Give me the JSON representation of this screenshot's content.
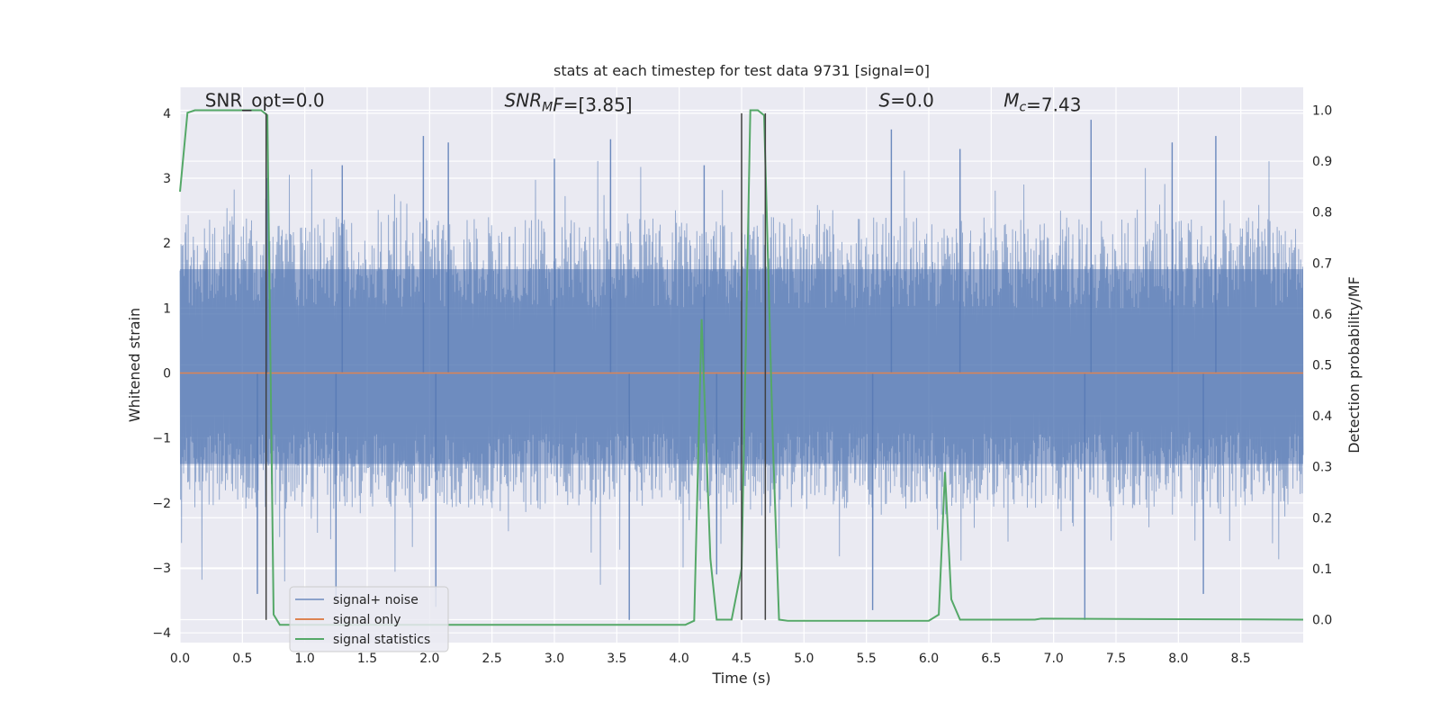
{
  "chart_data": {
    "type": "line",
    "title": "stats at each timestep for test data 9731 [signal=0]",
    "xlabel": "Time (s)",
    "ylabel": "Whitened strain",
    "y2label": "Detection probability/MF",
    "xlim": [
      0.0,
      9.0
    ],
    "ylim": [
      -4.15,
      4.4
    ],
    "y2lim": [
      -0.045,
      1.045
    ],
    "xticks": [
      0.0,
      0.5,
      1.0,
      1.5,
      2.0,
      2.5,
      3.0,
      3.5,
      4.0,
      4.5,
      5.0,
      5.5,
      6.0,
      6.5,
      7.0,
      7.5,
      8.0,
      8.5
    ],
    "xtick_labels": [
      "0.0",
      "0.5",
      "1.0",
      "1.5",
      "2.0",
      "2.5",
      "3.0",
      "3.5",
      "4.0",
      "4.5",
      "5.0",
      "5.5",
      "6.0",
      "6.5",
      "7.0",
      "7.5",
      "8.0",
      "8.5"
    ],
    "yticks": [
      4,
      3,
      2,
      1,
      0,
      -1,
      -2,
      -3,
      -4
    ],
    "ytick_labels": [
      "4",
      "3",
      "2",
      "1",
      "0",
      "−1",
      "−2",
      "−3",
      "−4"
    ],
    "y2ticks": [
      1.0,
      0.9,
      0.8,
      0.7,
      0.6,
      0.5,
      0.4,
      0.3,
      0.2,
      0.1,
      0.0
    ],
    "y2tick_labels": [
      "1.0",
      "0.9",
      "0.8",
      "0.7",
      "0.6",
      "0.5",
      "0.4",
      "0.3",
      "0.2",
      "0.1",
      "0.0"
    ],
    "grid": true,
    "legend_position": "lower-left",
    "series": [
      {
        "name": "signal+ noise",
        "color": "#4c72b0",
        "axis": "left",
        "description": "noise band",
        "band_envelope": {
          "x": [
            0.0,
            9.0
          ],
          "upper_typical": 1.7,
          "lower_typical": -1.5
        },
        "peaks": [
          {
            "x": 0.7,
            "y": 3.0
          },
          {
            "x": 1.3,
            "y": 3.2
          },
          {
            "x": 1.95,
            "y": 3.65
          },
          {
            "x": 2.15,
            "y": 3.55
          },
          {
            "x": 3.0,
            "y": 3.3
          },
          {
            "x": 3.45,
            "y": 3.6
          },
          {
            "x": 4.2,
            "y": 3.2
          },
          {
            "x": 5.7,
            "y": 3.75
          },
          {
            "x": 6.25,
            "y": 3.45
          },
          {
            "x": 7.3,
            "y": 3.9
          },
          {
            "x": 7.95,
            "y": 3.55
          },
          {
            "x": 8.3,
            "y": 3.65
          }
        ],
        "troughs": [
          {
            "x": 0.62,
            "y": -3.4
          },
          {
            "x": 1.25,
            "y": -3.5
          },
          {
            "x": 2.05,
            "y": -3.6
          },
          {
            "x": 3.6,
            "y": -3.8
          },
          {
            "x": 4.3,
            "y": -3.1
          },
          {
            "x": 5.55,
            "y": -3.65
          },
          {
            "x": 7.25,
            "y": -3.8
          },
          {
            "x": 8.2,
            "y": -3.4
          }
        ]
      },
      {
        "name": "signal only",
        "color": "#dd8452",
        "axis": "left",
        "x": [
          0.0,
          9.0
        ],
        "y": [
          0.0,
          0.0
        ]
      },
      {
        "name": "signal statistics",
        "color": "#55a868",
        "axis": "right",
        "x": [
          0.0,
          0.06,
          0.12,
          0.65,
          0.7,
          0.75,
          0.8,
          0.85,
          4.05,
          4.12,
          4.18,
          4.25,
          4.3,
          4.42,
          4.5,
          4.57,
          4.63,
          4.68,
          4.75,
          4.8,
          4.87,
          6.0,
          6.08,
          6.13,
          6.18,
          6.25,
          6.85,
          6.9,
          9.0
        ],
        "y": [
          0.84,
          0.995,
          1.0,
          1.0,
          0.99,
          0.01,
          -0.01,
          -0.01,
          -0.01,
          -0.002,
          0.59,
          0.12,
          0.0,
          0.0,
          0.1,
          1.0,
          1.0,
          0.99,
          0.35,
          0.0,
          -0.002,
          -0.002,
          0.01,
          0.29,
          0.04,
          0.0,
          0.0,
          0.002,
          0.0
        ]
      }
    ],
    "vlines": [
      {
        "x": 0.69,
        "y": [
          -3.8,
          4.0
        ],
        "color": "#404040"
      },
      {
        "x": 4.5,
        "y": [
          -3.8,
          4.0
        ],
        "color": "#404040"
      },
      {
        "x": 4.69,
        "y": [
          -3.8,
          4.0
        ],
        "color": "#404040"
      }
    ],
    "annotations": [
      {
        "x": 0.2,
        "y": 4.1,
        "parts": [
          {
            "text": "SNR_opt=0.0"
          }
        ]
      },
      {
        "x": 2.6,
        "y": 4.1,
        "parts": [
          {
            "text": "SNR",
            "italic": true
          },
          {
            "text": "M",
            "italic": true,
            "sub": true
          },
          {
            "text": "F",
            "italic": true
          },
          {
            "text": "=[3.85]"
          }
        ]
      },
      {
        "x": 5.6,
        "y": 4.1,
        "parts": [
          {
            "text": "S",
            "italic": true
          },
          {
            "text": "=0.0"
          }
        ]
      },
      {
        "x": 6.6,
        "y": 4.1,
        "parts": [
          {
            "text": "M",
            "italic": true
          },
          {
            "text": "c",
            "italic": true,
            "sub": true
          },
          {
            "text": "=7.43"
          }
        ]
      }
    ]
  }
}
